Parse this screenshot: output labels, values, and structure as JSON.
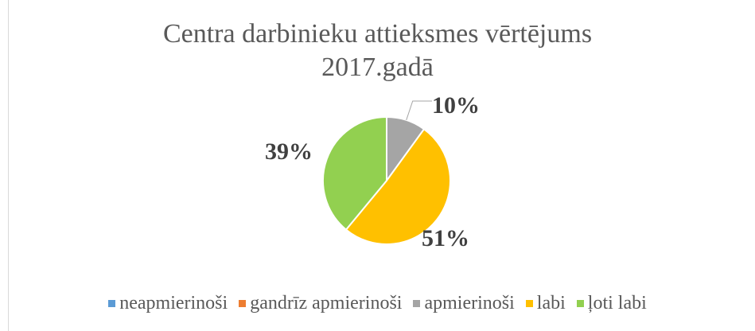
{
  "chart_data": {
    "type": "pie",
    "title": "Centra darbinieku attieksmes vērtējums 2017.gadā",
    "categories": [
      "neapmierinoši",
      "gandrīz apmierinoši",
      "apmierinoši",
      "labi",
      "ļoti labi"
    ],
    "values": [
      0,
      0,
      10,
      51,
      39
    ],
    "value_labels": [
      null,
      null,
      "10%",
      "51%",
      "39%"
    ],
    "colors": [
      "#5b9bd5",
      "#ed7d31",
      "#a5a5a5",
      "#ffc000",
      "#92d050"
    ],
    "legend": "bottom"
  }
}
